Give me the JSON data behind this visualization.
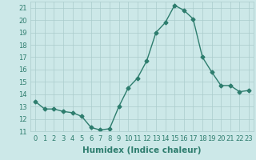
{
  "x": [
    0,
    1,
    2,
    3,
    4,
    5,
    6,
    7,
    8,
    9,
    10,
    11,
    12,
    13,
    14,
    15,
    16,
    17,
    18,
    19,
    20,
    21,
    22,
    23
  ],
  "y": [
    13.4,
    12.8,
    12.8,
    12.6,
    12.5,
    12.2,
    11.3,
    11.1,
    11.2,
    13.0,
    14.5,
    15.3,
    16.7,
    19.0,
    19.8,
    21.2,
    20.8,
    20.1,
    17.0,
    15.8,
    14.7,
    14.7,
    14.2,
    14.3
  ],
  "line_color": "#2e7d6e",
  "marker": "D",
  "marker_size": 2.5,
  "bg_color": "#cce8e8",
  "grid_color": "#aacccc",
  "xlabel": "Humidex (Indice chaleur)",
  "ylim": [
    11,
    21.5
  ],
  "xlim": [
    -0.5,
    23.5
  ],
  "yticks": [
    11,
    12,
    13,
    14,
    15,
    16,
    17,
    18,
    19,
    20,
    21
  ],
  "xticks": [
    0,
    1,
    2,
    3,
    4,
    5,
    6,
    7,
    8,
    9,
    10,
    11,
    12,
    13,
    14,
    15,
    16,
    17,
    18,
    19,
    20,
    21,
    22,
    23
  ],
  "xlabel_fontsize": 7.5,
  "tick_fontsize": 6.0
}
